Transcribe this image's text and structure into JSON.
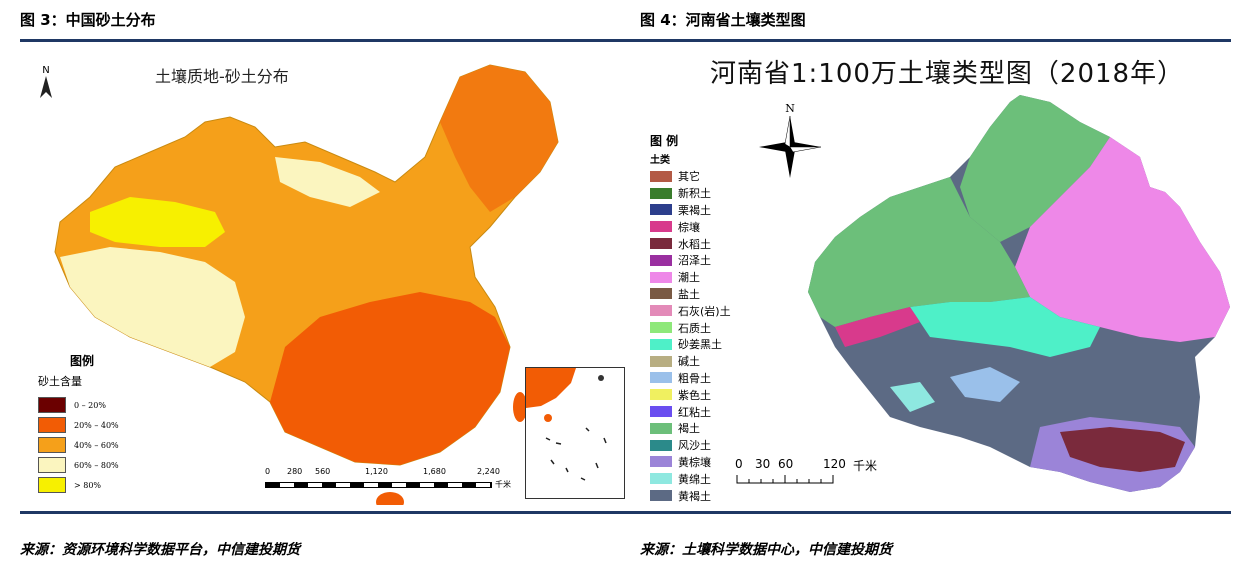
{
  "header": {
    "left_title": "图 3：中国砂土分布",
    "right_title": "图 4：河南省土壤类型图"
  },
  "footer": {
    "left_source": "来源：资源环境科学数据平台，中信建投期货",
    "right_source": "来源：土壤科学数据中心，中信建投期货"
  },
  "left_map": {
    "title": "土壤质地-砂土分布",
    "north": "N",
    "legend_title": "图例",
    "legend_subtitle": "砂土含量",
    "legend_items": [
      {
        "label": "0 – 20%",
        "color": "#6b0000"
      },
      {
        "label": "20% – 40%",
        "color": "#f25c05"
      },
      {
        "label": "40% – 60%",
        "color": "#f5a01a"
      },
      {
        "label": "60% – 80%",
        "color": "#fbf5bf"
      },
      {
        "label": "> 80%",
        "color": "#f7f000"
      }
    ],
    "scale_ticks": [
      "0",
      "280",
      "560",
      "1,120",
      "1,680",
      "2,240"
    ],
    "scale_unit": "千米"
  },
  "right_map": {
    "title": "河南省1:100万土壤类型图（2018年）",
    "north": "N",
    "legend_title": "图 例",
    "legend_subtitle": "土类",
    "legend_items": [
      {
        "label": "其它",
        "color": "#b35a45"
      },
      {
        "label": "新积土",
        "color": "#3a7d2c"
      },
      {
        "label": "栗褐土",
        "color": "#2c3e8c"
      },
      {
        "label": "棕壤",
        "color": "#d83a8c"
      },
      {
        "label": "水稻土",
        "color": "#7a2a3c"
      },
      {
        "label": "沼泽土",
        "color": "#9a2fa0"
      },
      {
        "label": "潮土",
        "color": "#ee88e8"
      },
      {
        "label": "盐土",
        "color": "#7a5a44"
      },
      {
        "label": "石灰(岩)土",
        "color": "#e38ab8"
      },
      {
        "label": "石质土",
        "color": "#8ee87a"
      },
      {
        "label": "砂姜黑土",
        "color": "#4ef0c8"
      },
      {
        "label": "碱土",
        "color": "#b8ae82"
      },
      {
        "label": "粗骨土",
        "color": "#9ac0ea"
      },
      {
        "label": "紫色土",
        "color": "#f0f060"
      },
      {
        "label": "红粘土",
        "color": "#6a4ef0"
      },
      {
        "label": "褐土",
        "color": "#6cbf7a"
      },
      {
        "label": "风沙土",
        "color": "#2b8a8a"
      },
      {
        "label": "黄棕壤",
        "color": "#9b84d8"
      },
      {
        "label": "黄绵土",
        "color": "#8ee8e0"
      },
      {
        "label": "黄褐土",
        "color": "#5c6a84"
      }
    ],
    "scale_ticks": [
      "0",
      "30",
      "60",
      "120"
    ],
    "scale_unit": "千米"
  }
}
